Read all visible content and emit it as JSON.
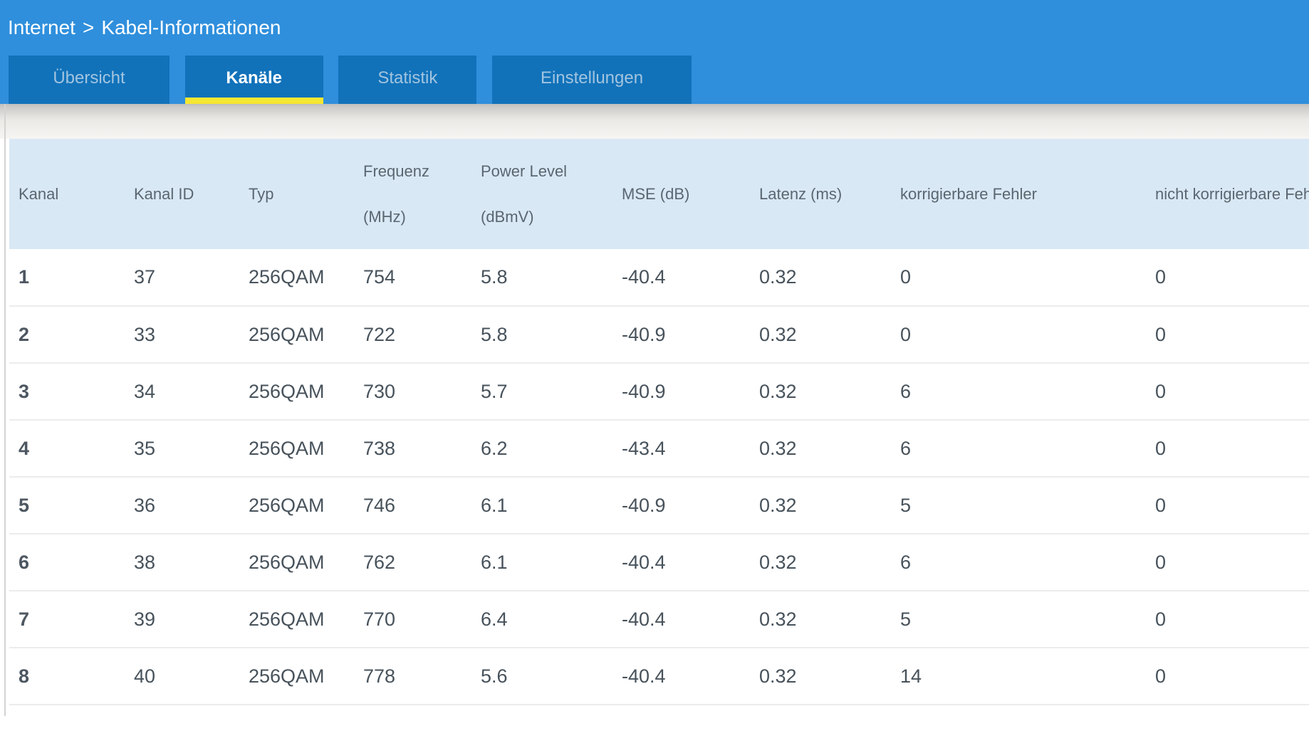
{
  "breadcrumb": {
    "section": "Internet",
    "separator": ">",
    "page": "Kabel-Informationen"
  },
  "tabs": [
    {
      "id": "uebersicht",
      "label": "Übersicht",
      "active": false
    },
    {
      "id": "kanaele",
      "label": "Kanäle",
      "active": true
    },
    {
      "id": "statistik",
      "label": "Statistik",
      "active": false
    },
    {
      "id": "einstellungen",
      "label": "Einstellungen",
      "active": false
    }
  ],
  "table": {
    "columns": [
      {
        "label": "Kanal",
        "sub": ""
      },
      {
        "label": "Kanal ID",
        "sub": ""
      },
      {
        "label": "Typ",
        "sub": ""
      },
      {
        "label": "Frequenz",
        "sub": "(MHz)"
      },
      {
        "label": "Power Level",
        "sub": "(dBmV)"
      },
      {
        "label": "MSE (dB)",
        "sub": ""
      },
      {
        "label": "Latenz (ms)",
        "sub": ""
      },
      {
        "label": "korrigierbare Fehler",
        "sub": ""
      },
      {
        "label": "nicht korrigierbare Fehler",
        "sub": ""
      }
    ],
    "rows": [
      [
        "1",
        "37",
        "256QAM",
        "754",
        "5.8",
        "-40.4",
        "0.32",
        "0",
        "0"
      ],
      [
        "2",
        "33",
        "256QAM",
        "722",
        "5.8",
        "-40.9",
        "0.32",
        "0",
        "0"
      ],
      [
        "3",
        "34",
        "256QAM",
        "730",
        "5.7",
        "-40.9",
        "0.32",
        "6",
        "0"
      ],
      [
        "4",
        "35",
        "256QAM",
        "738",
        "6.2",
        "-43.4",
        "0.32",
        "6",
        "0"
      ],
      [
        "5",
        "36",
        "256QAM",
        "746",
        "6.1",
        "-40.9",
        "0.32",
        "5",
        "0"
      ],
      [
        "6",
        "38",
        "256QAM",
        "762",
        "6.1",
        "-40.4",
        "0.32",
        "6",
        "0"
      ],
      [
        "7",
        "39",
        "256QAM",
        "770",
        "6.4",
        "-40.4",
        "0.32",
        "5",
        "0"
      ],
      [
        "8",
        "40",
        "256QAM",
        "778",
        "5.6",
        "-40.4",
        "0.32",
        "14",
        "0"
      ]
    ]
  },
  "colors": {
    "header_blue": "#2F8FDC",
    "tab_blue": "#1172BA",
    "tab_text_inactive": "#A2C4DF",
    "active_underline": "#F6E733",
    "table_header_bg": "#D9E8F5",
    "header_text": "#5A6670",
    "cell_text": "#47525B"
  }
}
